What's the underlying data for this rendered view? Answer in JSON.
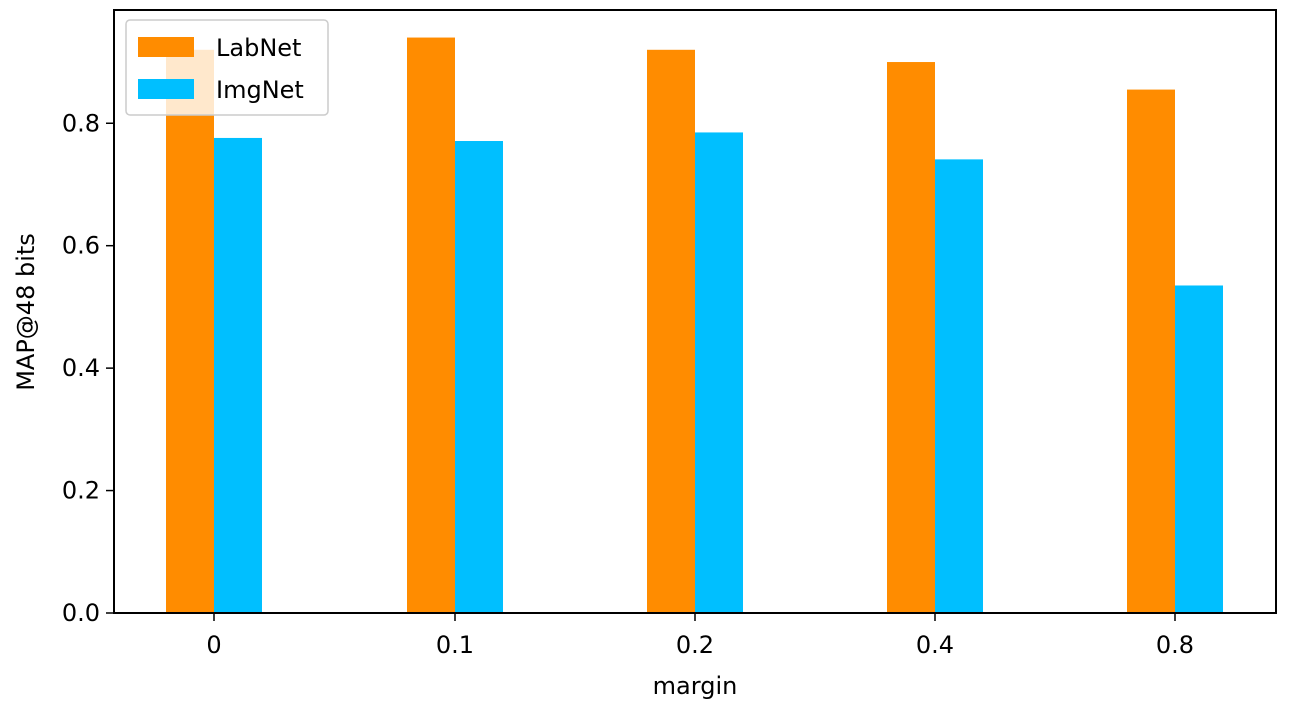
{
  "chart_data": {
    "type": "bar",
    "categories": [
      "0",
      "0.1",
      "0.2",
      "0.4",
      "0.8"
    ],
    "series": [
      {
        "name": "LabNet",
        "color": "#ff8c00",
        "values": [
          0.92,
          0.94,
          0.92,
          0.9,
          0.855
        ]
      },
      {
        "name": "ImgNet",
        "color": "#00bfff",
        "values": [
          0.776,
          0.771,
          0.785,
          0.741,
          0.535
        ]
      }
    ],
    "title": "",
    "xlabel": "margin",
    "ylabel": "MAP@48 bits",
    "ylim": [
      0,
      0.985
    ],
    "yticks": [
      "0.0",
      "0.2",
      "0.4",
      "0.6",
      "0.8"
    ],
    "legend_position": "top-left",
    "grid": false
  }
}
